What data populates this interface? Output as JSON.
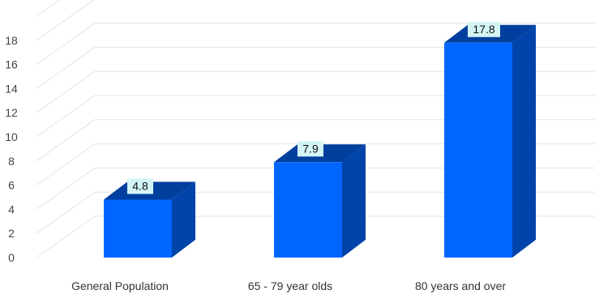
{
  "chart_data": {
    "type": "bar",
    "style": "3d-column",
    "categories": [
      "General Population",
      "65 - 79 year olds",
      "80 years and over"
    ],
    "values": [
      4.8,
      7.9,
      17.8
    ],
    "data_labels": [
      "4.8",
      "7.9",
      "17.8"
    ],
    "yticks": [
      0,
      2,
      4,
      6,
      8,
      10,
      12,
      14,
      16,
      18
    ],
    "ylim": [
      0,
      20
    ],
    "grid": true,
    "legend": "none",
    "colors": {
      "bar_front": "#0066ff",
      "bar_side": "#0044aa",
      "bar_top": "#003f9e",
      "label_bg": "#d4f5f5",
      "grid": "#e3e3e3",
      "axis_text": "#444444"
    }
  }
}
